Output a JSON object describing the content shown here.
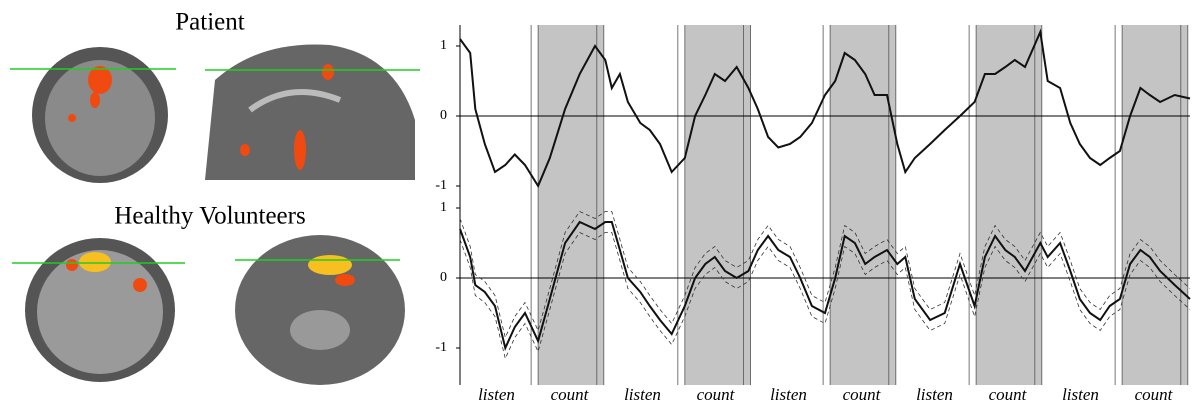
{
  "panel_labels": {
    "patient": "Patient",
    "healthy": "Healthy Volunteers"
  },
  "timeline": {
    "xlim": [
      0,
      100
    ],
    "count_spans": [
      [
        10.7,
        19.7
      ],
      [
        30.8,
        39.8
      ],
      [
        50.7,
        59.7
      ],
      [
        70.7,
        79.7
      ],
      [
        90.7,
        99.7
      ]
    ],
    "period_labels": [
      "listen",
      "count",
      "listen",
      "count",
      "listen",
      "count",
      "listen",
      "count",
      "listen",
      "count"
    ]
  },
  "chart_data": [
    {
      "type": "line",
      "xlim": [
        0,
        100
      ],
      "ylim": [
        -1.2,
        1.3
      ],
      "yticks": [
        -1,
        0,
        1
      ],
      "color": "#111111",
      "x": [
        0,
        1.4,
        2.1,
        3.4,
        4.8,
        6.2,
        7.5,
        8.9,
        10.7,
        12.3,
        14.4,
        16.4,
        18.5,
        19.9,
        20.8,
        21.9,
        23,
        24.7,
        26,
        27.4,
        29,
        30.8,
        32.2,
        33.6,
        34.9,
        36.3,
        37.9,
        39.5,
        40.8,
        42.2,
        43.6,
        45.2,
        46.6,
        48.2,
        50,
        51.4,
        52.7,
        54.1,
        55.5,
        56.8,
        58.5,
        59.9,
        61,
        62.3,
        64.4,
        66.4,
        68.5,
        70.5,
        71.9,
        73.3,
        74.7,
        76,
        77.4,
        79.5,
        80.5,
        82.2,
        83.6,
        84.9,
        86.3,
        87.7,
        89,
        90.4,
        91.8,
        93.2,
        94.5,
        95.9,
        97.9,
        100
      ],
      "values": [
        1.1,
        0.9,
        0.1,
        -0.4,
        -0.8,
        -0.7,
        -0.55,
        -0.7,
        -1.0,
        -0.6,
        0.1,
        0.6,
        1.0,
        0.8,
        0.4,
        0.6,
        0.2,
        -0.1,
        -0.2,
        -0.4,
        -0.8,
        -0.6,
        0.0,
        0.3,
        0.6,
        0.5,
        0.7,
        0.4,
        0.1,
        -0.3,
        -0.45,
        -0.4,
        -0.3,
        -0.1,
        0.3,
        0.5,
        0.9,
        0.8,
        0.6,
        0.3,
        0.3,
        -0.4,
        -0.8,
        -0.6,
        -0.4,
        -0.2,
        0.0,
        0.2,
        0.6,
        0.6,
        0.7,
        0.8,
        0.7,
        1.2,
        0.5,
        0.4,
        -0.1,
        -0.4,
        -0.6,
        -0.7,
        -0.6,
        -0.5,
        0.0,
        0.4,
        0.3,
        0.2,
        0.3,
        0.25
      ]
    },
    {
      "type": "line",
      "xlim": [
        0,
        100
      ],
      "ylim": [
        -1.3,
        1.2
      ],
      "yticks": [
        -1,
        0,
        1
      ],
      "color": "#111111",
      "error": 0.15,
      "x": [
        0,
        1.4,
        2.1,
        3.4,
        4.8,
        6.2,
        7.5,
        8.9,
        10.7,
        12.3,
        14.4,
        16.4,
        18.5,
        19.9,
        20.8,
        21.9,
        23,
        24.7,
        26,
        27.4,
        29,
        30.8,
        32.2,
        33.6,
        34.9,
        36.3,
        37.9,
        39.5,
        40.8,
        42.2,
        43.6,
        45.2,
        46.6,
        48.2,
        50,
        51.4,
        52.7,
        54.1,
        55.5,
        56.8,
        58.5,
        59.9,
        61,
        62.3,
        64.4,
        66.4,
        68.5,
        70.5,
        71.9,
        73.3,
        74.7,
        76,
        77.4,
        79.5,
        80.5,
        82.2,
        83.6,
        84.9,
        86.3,
        87.7,
        89,
        90.4,
        91.8,
        93.2,
        94.5,
        95.9,
        97.9,
        100
      ],
      "values": [
        0.7,
        0.3,
        -0.1,
        -0.2,
        -0.4,
        -1.0,
        -0.7,
        -0.5,
        -0.9,
        -0.3,
        0.5,
        0.8,
        0.7,
        0.8,
        0.8,
        0.4,
        0.0,
        -0.2,
        -0.4,
        -0.6,
        -0.8,
        -0.4,
        0.0,
        0.2,
        0.3,
        0.1,
        0.0,
        0.1,
        0.4,
        0.6,
        0.4,
        0.3,
        0.0,
        -0.4,
        -0.5,
        0.0,
        0.6,
        0.5,
        0.2,
        0.3,
        0.4,
        0.2,
        0.3,
        -0.3,
        -0.6,
        -0.5,
        0.2,
        -0.4,
        0.3,
        0.6,
        0.4,
        0.3,
        0.1,
        0.5,
        0.3,
        0.5,
        0.1,
        -0.3,
        -0.5,
        -0.6,
        -0.4,
        -0.3,
        0.2,
        0.4,
        0.3,
        0.1,
        -0.1,
        -0.3
      ]
    }
  ]
}
